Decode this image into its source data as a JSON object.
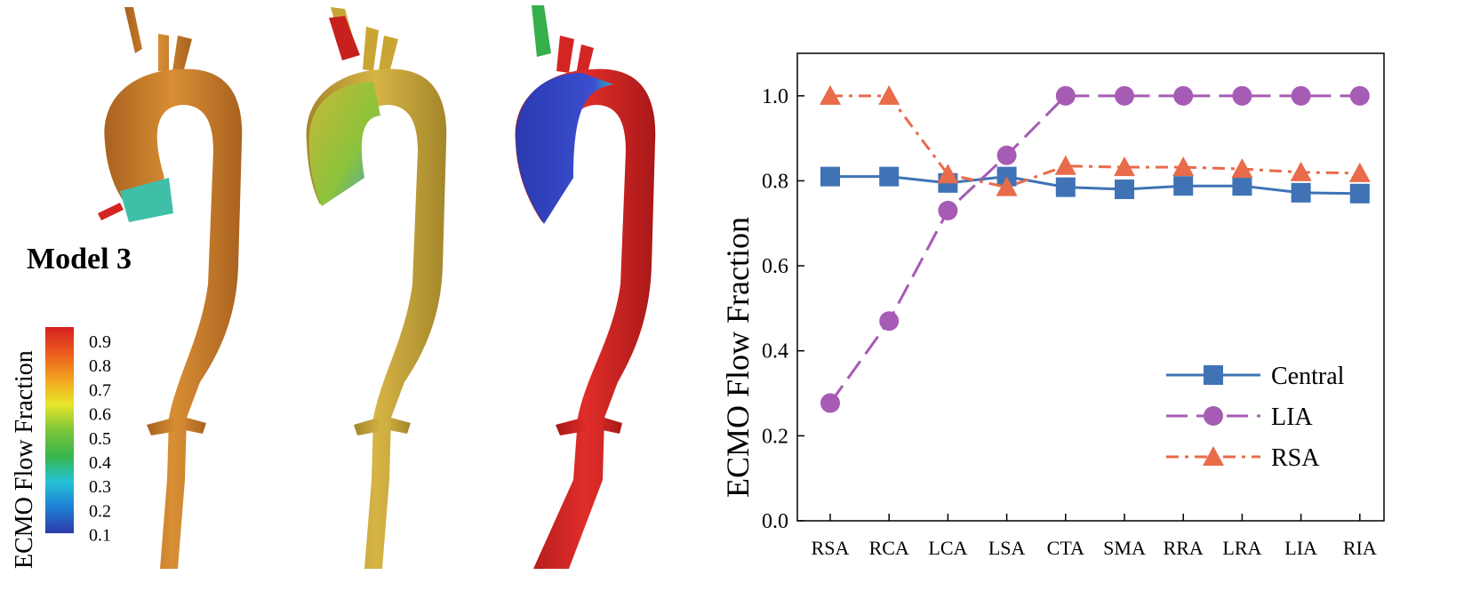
{
  "left_panel": {
    "model_label": "Model 3",
    "colorbar": {
      "title": "ECMO Flow Fraction",
      "ticks": [
        "0.9",
        "0.8",
        "0.7",
        "0.6",
        "0.5",
        "0.4",
        "0.3",
        "0.2",
        "0.1"
      ],
      "stops": [
        "#2c3aa8",
        "#1f7fd6",
        "#26c2d6",
        "#37b64a",
        "#7cc53a",
        "#e8e62a",
        "#f3a21f",
        "#ea5a1e",
        "#d62020"
      ]
    },
    "colors": {
      "orange": "#c97b2c",
      "mid_orange": "#cf8a2e",
      "red": "#d32522",
      "yellow": "#c4a536",
      "green": "#8fbf3a",
      "blue": "#3146c2",
      "cyan": "#25c0c9"
    }
  },
  "chart_data": {
    "type": "line",
    "categories": [
      "RSA",
      "RCA",
      "LCA",
      "LSA",
      "CTA",
      "SMA",
      "RRA",
      "LRA",
      "LIA",
      "RIA"
    ],
    "ylabel": "ECMO Flow Fraction",
    "ylim": [
      0.0,
      1.1
    ],
    "yticks": [
      "0.0",
      "0.2",
      "0.4",
      "0.6",
      "0.8",
      "1.0"
    ],
    "ytick_values": [
      0.0,
      0.2,
      0.4,
      0.6,
      0.8,
      1.0
    ],
    "legend_position": "lower-right",
    "series": [
      {
        "name": "Central",
        "color": "#3f73b6",
        "marker": "square",
        "dash": "solid",
        "values": [
          0.81,
          0.81,
          0.795,
          0.81,
          0.785,
          0.78,
          0.788,
          0.788,
          0.772,
          0.77
        ]
      },
      {
        "name": "LIA",
        "color": "#a65bb4",
        "marker": "circle",
        "dash": "dash",
        "values": [
          0.277,
          0.47,
          0.73,
          0.86,
          1.0,
          1.0,
          1.0,
          1.0,
          1.0,
          1.0
        ]
      },
      {
        "name": "RSA",
        "color": "#e86b4a",
        "marker": "triangle",
        "dash": "dashdot",
        "values": [
          1.0,
          1.0,
          0.815,
          0.785,
          0.835,
          0.832,
          0.832,
          0.828,
          0.82,
          0.818
        ]
      }
    ]
  }
}
